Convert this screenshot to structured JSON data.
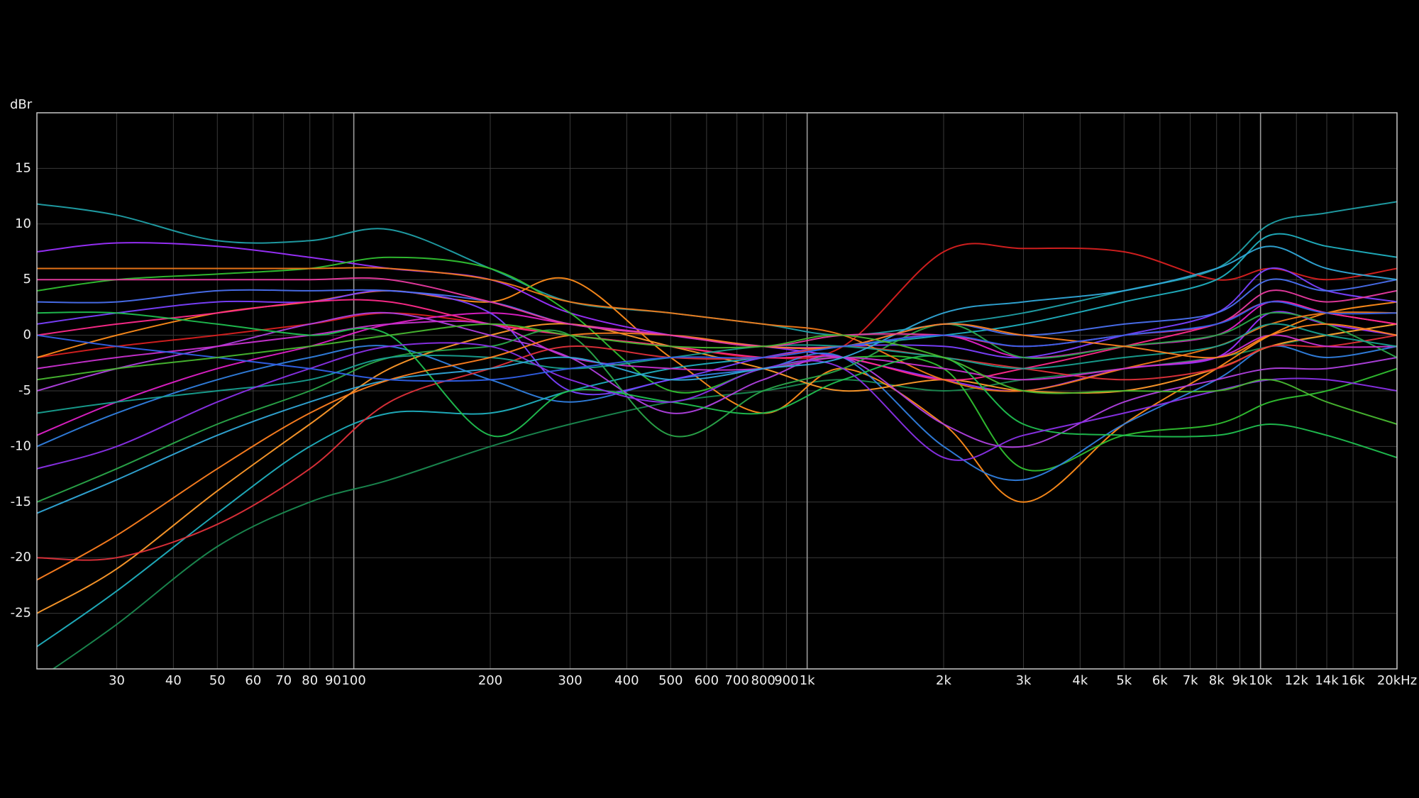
{
  "chart_data": {
    "type": "line",
    "y_label": "dBr",
    "log_x": true,
    "grid": true,
    "xlim": [
      20,
      20000
    ],
    "ylim": [
      -30,
      20
    ],
    "yticks": [
      -25,
      -20,
      -15,
      -10,
      -5,
      0,
      5,
      10,
      15
    ],
    "xticks": [
      30,
      40,
      50,
      60,
      70,
      80,
      90,
      100,
      200,
      300,
      400,
      500,
      600,
      700,
      800,
      900,
      {
        "value": 1000,
        "label": "1k"
      },
      {
        "value": 2000,
        "label": "2k"
      },
      {
        "value": 3000,
        "label": "3k"
      },
      {
        "value": 4000,
        "label": "4k"
      },
      {
        "value": 5000,
        "label": "5k"
      },
      {
        "value": 6000,
        "label": "6k"
      },
      {
        "value": 7000,
        "label": "7k"
      },
      {
        "value": 8000,
        "label": "8k"
      },
      {
        "value": 9000,
        "label": "9k"
      },
      {
        "value": 10000,
        "label": "10k"
      },
      {
        "value": 12000,
        "label": "12k"
      },
      {
        "value": 14000,
        "label": "14k"
      },
      {
        "value": 16000,
        "label": "16k"
      },
      {
        "value": 20000,
        "label": "20kHz"
      }
    ],
    "x": [
      20,
      30,
      50,
      80,
      120,
      200,
      300,
      500,
      800,
      1200,
      2000,
      3000,
      5000,
      8000,
      10500,
      14000,
      20000
    ],
    "series": [
      {
        "color": "#20a0a8",
        "values": [
          11.8,
          10.8,
          8.5,
          8.5,
          9.5,
          6,
          3,
          2,
          1,
          0,
          1,
          2,
          4,
          6,
          10,
          11,
          12
        ]
      },
      {
        "color": "#d82020",
        "values": [
          -2,
          -1,
          0,
          1,
          2,
          1,
          0,
          -1,
          -2,
          -1,
          7.5,
          7.8,
          7.5,
          5,
          6,
          5,
          6
        ]
      },
      {
        "color": "#1a8a50",
        "values": [
          -31,
          -26,
          -19,
          -15,
          -13,
          -10,
          -8,
          -6,
          -5,
          -4,
          -5,
          -4,
          -3,
          -2,
          -1,
          0,
          1
        ]
      },
      {
        "color": "#ff8c1a",
        "values": [
          -2,
          0,
          2,
          3,
          4,
          3,
          5,
          -2,
          -7,
          -3,
          -8,
          -15,
          -8,
          -3,
          0,
          2,
          3
        ]
      },
      {
        "color": "#9b30ff",
        "values": [
          7.5,
          8.3,
          8,
          7,
          6,
          5,
          2,
          0,
          -1,
          -2,
          -4,
          -5,
          -3,
          -2,
          2,
          1,
          0
        ]
      },
      {
        "color": "#e020c8",
        "values": [
          -9,
          -6,
          -3,
          -1,
          1,
          2,
          1,
          0,
          -1,
          -1,
          0,
          -2,
          -1,
          0,
          3,
          2,
          1
        ]
      },
      {
        "color": "#30c030",
        "values": [
          4,
          5,
          5.5,
          6,
          7,
          6,
          2,
          -5,
          -3,
          -2,
          -3,
          -12,
          -9,
          -8,
          -6,
          -5,
          -3
        ]
      },
      {
        "color": "#3080e0",
        "values": [
          -10,
          -7,
          -4,
          -2,
          -1,
          -4,
          -6,
          -4,
          -3,
          -2,
          -10,
          -13,
          -8,
          -4,
          -1,
          -2,
          -1
        ]
      },
      {
        "color": "#ff9a2a",
        "values": [
          -25,
          -21,
          -14,
          -8,
          -3,
          0,
          1,
          -1,
          -3,
          -5,
          -4,
          -5,
          -5,
          -3,
          -1,
          0,
          1
        ]
      },
      {
        "color": "#20b0c0",
        "values": [
          -28,
          -23,
          -16,
          -10,
          -7,
          -7,
          -5,
          -3,
          -2,
          -1,
          0,
          1,
          3,
          5,
          9,
          8,
          7
        ]
      },
      {
        "color": "#7a40ff",
        "values": [
          1,
          2,
          3,
          3,
          4,
          2,
          -5,
          -4,
          -2,
          -1,
          -1,
          -2,
          0,
          2,
          6,
          4,
          3
        ]
      },
      {
        "color": "#ff2a8a",
        "values": [
          0,
          1,
          2,
          3,
          3,
          1,
          0,
          -1,
          -2,
          -2,
          -4,
          -3,
          -1,
          1,
          3,
          2,
          1
        ]
      },
      {
        "color": "#b040e0",
        "values": [
          -5,
          -3,
          -1,
          1,
          2,
          0,
          -2,
          -7,
          -4,
          -2,
          -8,
          -10,
          -6,
          -4,
          -3,
          -3,
          -2
        ]
      },
      {
        "color": "#2aa84a",
        "values": [
          -15,
          -12,
          -8,
          -5,
          -2,
          -1,
          0,
          -9,
          -5,
          -3,
          1,
          -2,
          -1,
          0,
          2,
          1,
          -2
        ]
      },
      {
        "color": "#e0303a",
        "values": [
          -20,
          -20,
          -17,
          -12,
          -6,
          -3,
          -1,
          -2,
          -2,
          -1,
          -2,
          -3,
          -4,
          -3,
          -1,
          -1,
          0
        ]
      },
      {
        "color": "#4a70f0",
        "values": [
          3,
          3,
          4,
          4,
          4,
          3,
          1,
          0,
          -1,
          -1,
          1,
          0,
          1,
          2,
          5,
          4,
          5
        ]
      },
      {
        "color": "#f07818",
        "values": [
          6,
          6,
          6,
          6,
          6,
          5,
          3,
          2,
          1,
          0,
          -4,
          -5,
          -3,
          -1,
          1,
          2,
          2
        ]
      },
      {
        "color": "#c830d0",
        "values": [
          -3,
          -2,
          -1,
          0,
          1,
          1,
          -2,
          -3,
          -3,
          -2,
          -3,
          -4,
          -3,
          -2,
          0,
          -1,
          -1
        ]
      },
      {
        "color": "#18a090",
        "values": [
          -7,
          -6,
          -5,
          -4,
          -2,
          -2,
          -3,
          -2,
          -1,
          -1,
          -2,
          -3,
          -2,
          -1,
          1,
          0,
          -1
        ]
      },
      {
        "color": "#20c050",
        "values": [
          2,
          2,
          1,
          0,
          0,
          -9,
          -5,
          -6,
          -7,
          -4,
          -2,
          -8,
          -9,
          -9,
          -8,
          -9,
          -11
        ]
      },
      {
        "color": "#8a30e8",
        "values": [
          -12,
          -10,
          -6,
          -3,
          -1,
          -1,
          -4,
          -6,
          -3,
          -3,
          -11,
          -9,
          -7,
          -5,
          -4,
          -4,
          -5
        ]
      },
      {
        "color": "#30a8d8",
        "values": [
          -16,
          -13,
          -9,
          -6,
          -4,
          -3,
          -2,
          -4,
          -3,
          -2,
          2,
          3,
          4,
          6,
          8,
          6,
          5
        ]
      },
      {
        "color": "#ff8020",
        "values": [
          -22,
          -18,
          -12,
          -7,
          -4,
          -2,
          0,
          0,
          -1,
          -1,
          1,
          0,
          -1,
          -2,
          0,
          1,
          0
        ]
      },
      {
        "color": "#e83aa0",
        "values": [
          5,
          5,
          5,
          5,
          5,
          3,
          1,
          0,
          -1,
          0,
          0,
          -1,
          0,
          1,
          4,
          3,
          4
        ]
      },
      {
        "color": "#3060e8",
        "values": [
          0,
          -1,
          -2,
          -3,
          -4,
          -4,
          -3,
          -2,
          -2,
          -1,
          0,
          -1,
          0,
          1,
          3,
          2,
          2
        ]
      },
      {
        "color": "#48b830",
        "values": [
          -4,
          -3,
          -2,
          -1,
          0,
          1,
          0,
          -1,
          -1,
          0,
          -2,
          -5,
          -5,
          -5,
          -4,
          -6,
          -8
        ]
      }
    ]
  }
}
